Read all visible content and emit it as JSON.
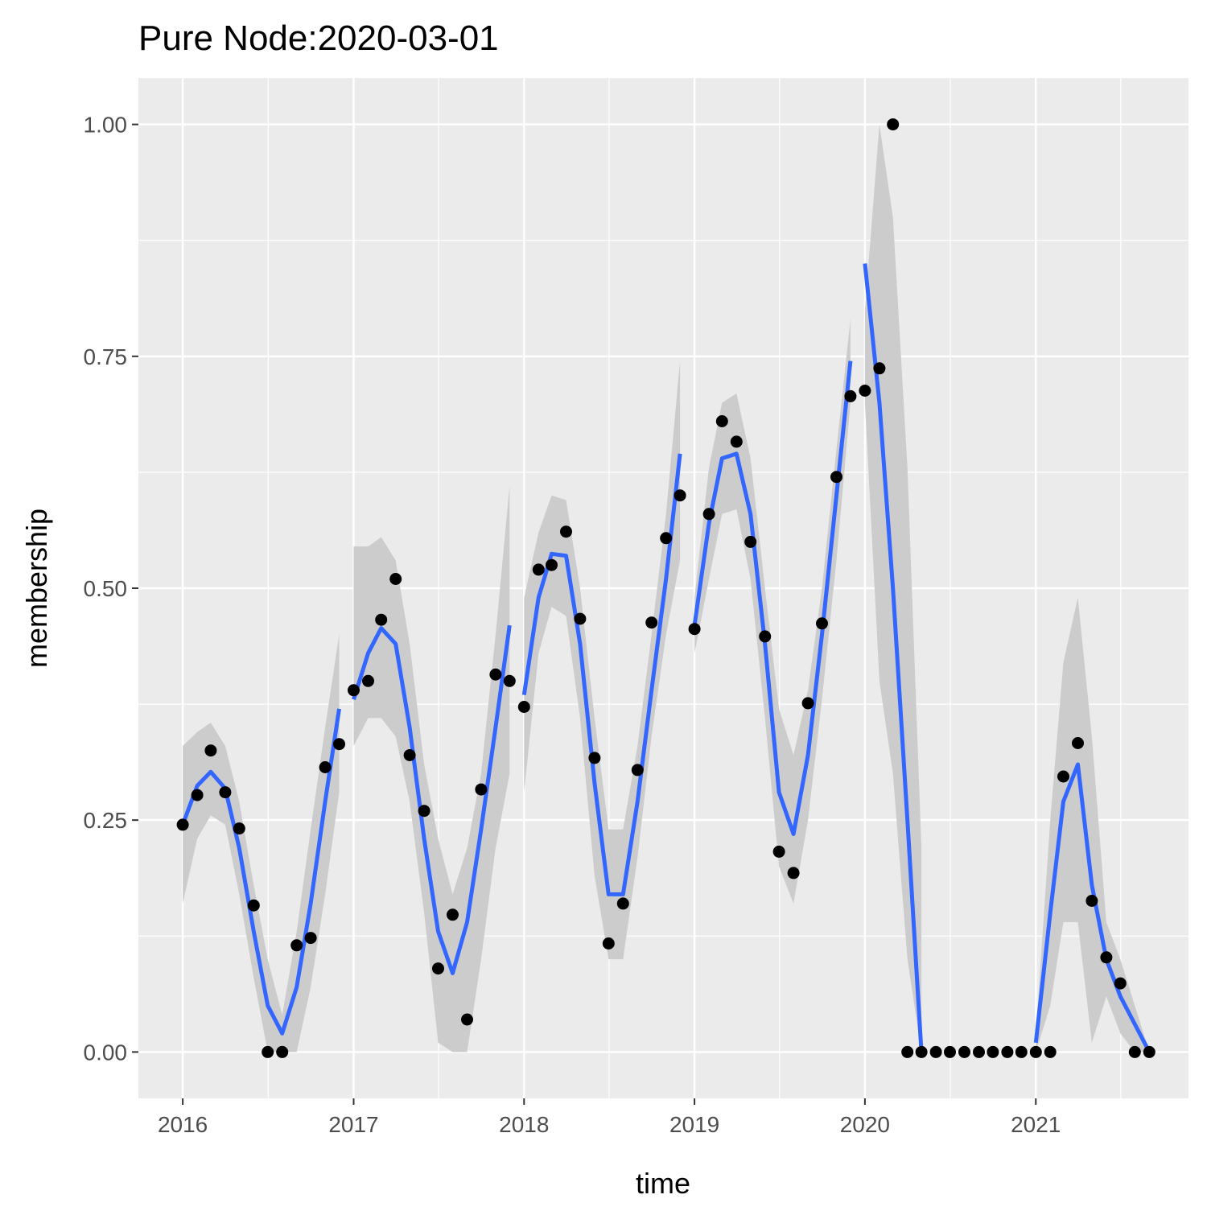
{
  "chart_data": {
    "type": "scatter",
    "title": "Pure Node:2020-03-01",
    "xlabel": "time",
    "ylabel": "membership",
    "xlim": [
      "2015-09-28",
      "2021-11-24"
    ],
    "ylim": [
      -0.05,
      1.05
    ],
    "x_ticks": [
      "2016",
      "2017",
      "2018",
      "2019",
      "2020",
      "2021"
    ],
    "y_ticks": [
      "0.00",
      "0.25",
      "0.50",
      "0.75",
      "1.00"
    ],
    "grid": true,
    "legend": "none",
    "colors": {
      "panel": "#ebebeb",
      "grid": "#ffffff",
      "points": "#000000",
      "smooth": "#3366ff",
      "ribbon": "#cccccc"
    },
    "points": {
      "x": [
        "2016-01-01",
        "2016-02-01",
        "2016-03-01",
        "2016-04-01",
        "2016-05-01",
        "2016-06-01",
        "2016-07-01",
        "2016-08-01",
        "2016-09-01",
        "2016-10-01",
        "2016-11-01",
        "2016-12-01",
        "2017-01-01",
        "2017-02-01",
        "2017-03-01",
        "2017-04-01",
        "2017-05-01",
        "2017-06-01",
        "2017-07-01",
        "2017-08-01",
        "2017-09-01",
        "2017-10-01",
        "2017-11-01",
        "2017-12-01",
        "2018-01-01",
        "2018-02-01",
        "2018-03-01",
        "2018-04-01",
        "2018-05-01",
        "2018-06-01",
        "2018-07-01",
        "2018-08-01",
        "2018-09-01",
        "2018-10-01",
        "2018-11-01",
        "2018-12-01",
        "2019-01-01",
        "2019-02-01",
        "2019-03-01",
        "2019-04-01",
        "2019-05-01",
        "2019-06-01",
        "2019-07-01",
        "2019-08-01",
        "2019-09-01",
        "2019-10-01",
        "2019-11-01",
        "2019-12-01",
        "2020-01-01",
        "2020-02-01",
        "2020-03-01",
        "2020-04-01",
        "2020-05-01",
        "2020-06-01",
        "2020-07-01",
        "2020-08-01",
        "2020-09-01",
        "2020-10-01",
        "2020-11-01",
        "2020-12-01",
        "2021-01-01",
        "2021-02-01",
        "2021-03-01",
        "2021-04-01",
        "2021-05-01",
        "2021-06-01",
        "2021-07-01",
        "2021-08-01",
        "2021-09-01"
      ],
      "y": [
        0.245,
        0.277,
        0.325,
        0.28,
        0.241,
        0.158,
        0.0,
        0.0,
        0.115,
        0.123,
        0.307,
        0.332,
        0.39,
        0.4,
        0.466,
        0.51,
        0.32,
        0.26,
        0.09,
        0.148,
        0.035,
        0.283,
        0.407,
        0.4,
        0.372,
        0.52,
        0.525,
        0.561,
        0.467,
        0.317,
        0.117,
        0.16,
        0.304,
        0.463,
        0.554,
        0.6,
        0.456,
        0.58,
        0.68,
        0.658,
        0.55,
        0.448,
        0.216,
        0.193,
        0.376,
        0.462,
        0.62,
        0.707,
        0.713,
        0.737,
        1.0,
        0.0,
        0.0,
        0.0,
        0.0,
        0.0,
        0.0,
        0.0,
        0.0,
        0.0,
        0.0,
        0.0,
        0.297,
        0.333,
        0.163,
        0.102,
        0.074,
        0.0,
        0.0
      ]
    },
    "smooth_segments": [
      {
        "x": [
          "2016-01-01",
          "2016-02-01",
          "2016-03-01",
          "2016-04-01",
          "2016-05-01",
          "2016-06-01",
          "2016-07-01",
          "2016-08-01",
          "2016-09-01",
          "2016-10-01",
          "2016-11-01",
          "2016-12-01"
        ],
        "y": [
          0.245,
          0.287,
          0.302,
          0.284,
          0.22,
          0.13,
          0.05,
          0.02,
          0.07,
          0.16,
          0.27,
          0.37
        ],
        "lower": [
          0.16,
          0.23,
          0.255,
          0.245,
          0.17,
          0.08,
          0.0,
          0.0,
          0.0,
          0.07,
          0.17,
          0.28
        ],
        "upper": [
          0.33,
          0.345,
          0.355,
          0.33,
          0.27,
          0.18,
          0.1,
          0.04,
          0.13,
          0.24,
          0.35,
          0.45
        ]
      },
      {
        "x": [
          "2017-01-01",
          "2017-02-01",
          "2017-03-01",
          "2017-04-01",
          "2017-05-01",
          "2017-06-01",
          "2017-07-01",
          "2017-08-01",
          "2017-09-01",
          "2017-10-01",
          "2017-11-01",
          "2017-12-01"
        ],
        "y": [
          0.38,
          0.43,
          0.457,
          0.44,
          0.35,
          0.23,
          0.13,
          0.085,
          0.14,
          0.24,
          0.35,
          0.46
        ],
        "lower": [
          0.33,
          0.36,
          0.36,
          0.34,
          0.27,
          0.15,
          0.01,
          0.0,
          0.0,
          0.1,
          0.22,
          0.3
        ],
        "upper": [
          0.545,
          0.545,
          0.555,
          0.53,
          0.44,
          0.31,
          0.23,
          0.17,
          0.22,
          0.3,
          0.45,
          0.61
        ]
      },
      {
        "x": [
          "2018-01-01",
          "2018-02-01",
          "2018-03-01",
          "2018-04-01",
          "2018-05-01",
          "2018-06-01",
          "2018-07-01",
          "2018-08-01",
          "2018-09-01",
          "2018-10-01",
          "2018-11-01",
          "2018-12-01"
        ],
        "y": [
          0.385,
          0.49,
          0.537,
          0.535,
          0.44,
          0.29,
          0.17,
          0.17,
          0.27,
          0.39,
          0.51,
          0.645
        ],
        "lower": [
          0.28,
          0.43,
          0.48,
          0.47,
          0.36,
          0.19,
          0.1,
          0.1,
          0.21,
          0.34,
          0.45,
          0.53
        ],
        "upper": [
          0.49,
          0.56,
          0.6,
          0.595,
          0.5,
          0.36,
          0.24,
          0.24,
          0.33,
          0.45,
          0.58,
          0.745
        ]
      },
      {
        "x": [
          "2019-01-01",
          "2019-02-01",
          "2019-03-01",
          "2019-04-01",
          "2019-05-01",
          "2019-06-01",
          "2019-07-01",
          "2019-08-01",
          "2019-09-01",
          "2019-10-01",
          "2019-11-01",
          "2019-12-01"
        ],
        "y": [
          0.46,
          0.57,
          0.64,
          0.645,
          0.58,
          0.44,
          0.28,
          0.235,
          0.32,
          0.45,
          0.6,
          0.745
        ],
        "lower": [
          0.43,
          0.51,
          0.58,
          0.585,
          0.51,
          0.36,
          0.2,
          0.16,
          0.25,
          0.38,
          0.53,
          0.7
        ],
        "upper": [
          0.49,
          0.63,
          0.7,
          0.71,
          0.64,
          0.5,
          0.37,
          0.32,
          0.39,
          0.5,
          0.65,
          0.79
        ]
      },
      {
        "x": [
          "2020-01-01",
          "2020-02-01",
          "2020-03-01",
          "2020-04-01",
          "2020-05-01"
        ],
        "y": [
          0.85,
          0.7,
          0.5,
          0.25,
          0.0
        ],
        "lower": [
          0.7,
          0.4,
          0.3,
          0.1,
          0.0
        ],
        "upper": [
          0.8,
          1.0,
          0.9,
          0.63,
          0.22
        ]
      },
      {
        "x": [
          "2021-01-01",
          "2021-02-01",
          "2021-03-01",
          "2021-04-01",
          "2021-05-01",
          "2021-06-01",
          "2021-07-01",
          "2021-08-01",
          "2021-09-01"
        ],
        "y": [
          0.01,
          0.15,
          0.27,
          0.31,
          0.18,
          0.1,
          0.06,
          0.03,
          0.0
        ],
        "lower": [
          0.0,
          0.05,
          0.14,
          0.14,
          0.01,
          0.06,
          0.02,
          0.0,
          0.0
        ],
        "upper": [
          0.02,
          0.25,
          0.42,
          0.49,
          0.34,
          0.14,
          0.1,
          0.05,
          0.0
        ]
      }
    ]
  }
}
